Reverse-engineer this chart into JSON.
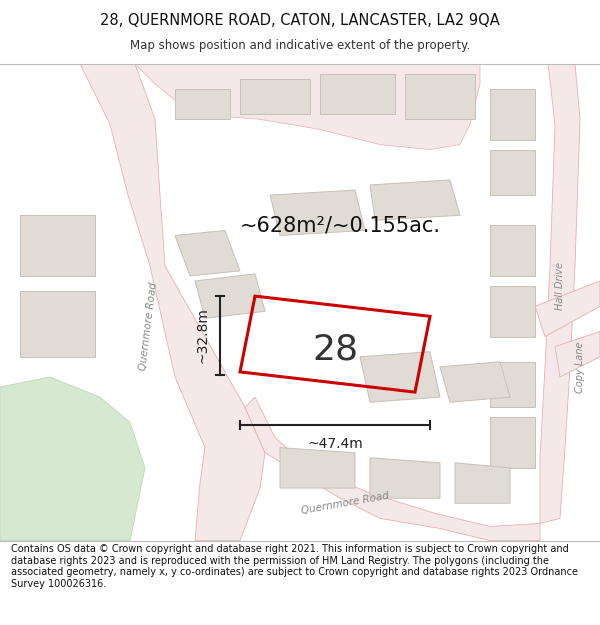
{
  "title_line1": "28, QUERNMORE ROAD, CATON, LANCASTER, LA2 9QA",
  "title_line2": "Map shows position and indicative extent of the property.",
  "footer_text": "Contains OS data © Crown copyright and database right 2021. This information is subject to Crown copyright and database rights 2023 and is reproduced with the permission of HM Land Registry. The polygons (including the associated geometry, namely x, y co-ordinates) are subject to Crown copyright and database rights 2023 Ordnance Survey 100026316.",
  "map_bg": "#f7f6f4",
  "road_fill": "#f5e8e8",
  "road_edge": "#e8b0b0",
  "property_color": "#cc0000",
  "green_fill": "#d6e8d0",
  "green_edge": "#c0d8b8",
  "building_fill": "#e0dbd5",
  "building_edge": "#c8c0b8",
  "dim_color": "#222222",
  "area_text": "~628m²/~0.155ac.",
  "dim_width": "~47.4m",
  "dim_height": "~32.8m",
  "label_number": "28",
  "road_label_quernmore": "Quernmore Road",
  "road_label_hall": "Hall Drive",
  "road_label_copy": "Copy Lane"
}
